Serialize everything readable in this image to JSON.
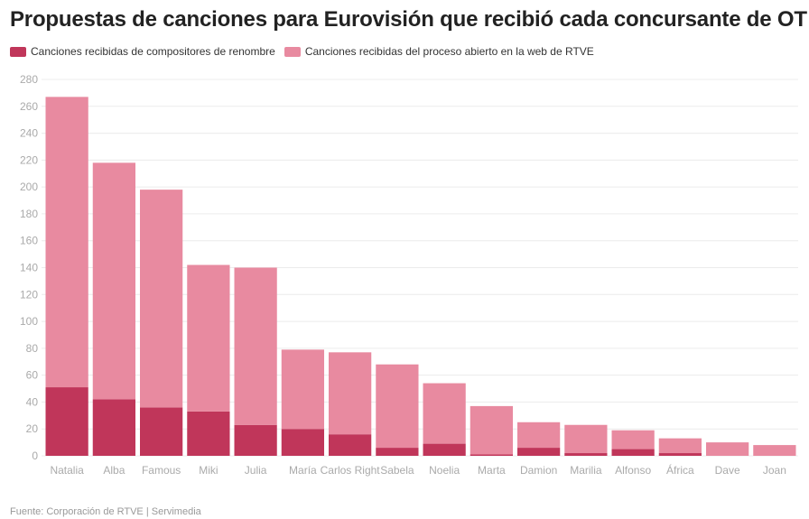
{
  "title": "Propuestas de canciones para Eurovisión que recibió cada concursante de OT",
  "source": "Fuente: Corporación de RTVE | Servimedia",
  "chart_data": {
    "type": "bar",
    "stacked": true,
    "title": "Propuestas de canciones para Eurovisión que recibió cada concursante de OT",
    "xlabel": "",
    "ylabel": "",
    "ylim": [
      0,
      280
    ],
    "yticks": [
      0,
      20,
      40,
      60,
      80,
      100,
      120,
      140,
      160,
      180,
      200,
      220,
      240,
      260,
      280
    ],
    "grid": true,
    "legend": "top-left",
    "categories": [
      "Natalia",
      "Alba",
      "Famous",
      "Miki",
      "Julia",
      "María",
      "Carlos Right",
      "Sabela",
      "Noelia",
      "Marta",
      "Damion",
      "Marilia",
      "Alfonso",
      "África",
      "Dave",
      "Joan"
    ],
    "series": [
      {
        "name": "Canciones recibidas de compositores de renombre",
        "color": "#c0365a",
        "values": [
          51,
          42,
          36,
          33,
          23,
          20,
          16,
          6,
          9,
          1,
          6,
          2,
          5,
          2,
          0,
          0
        ]
      },
      {
        "name": "Canciones recibidas del proceso abierto en la web de RTVE",
        "color": "#e88aa0",
        "values": [
          216,
          176,
          162,
          109,
          117,
          59,
          61,
          62,
          45,
          36,
          19,
          21,
          14,
          11,
          10,
          8
        ]
      }
    ]
  }
}
